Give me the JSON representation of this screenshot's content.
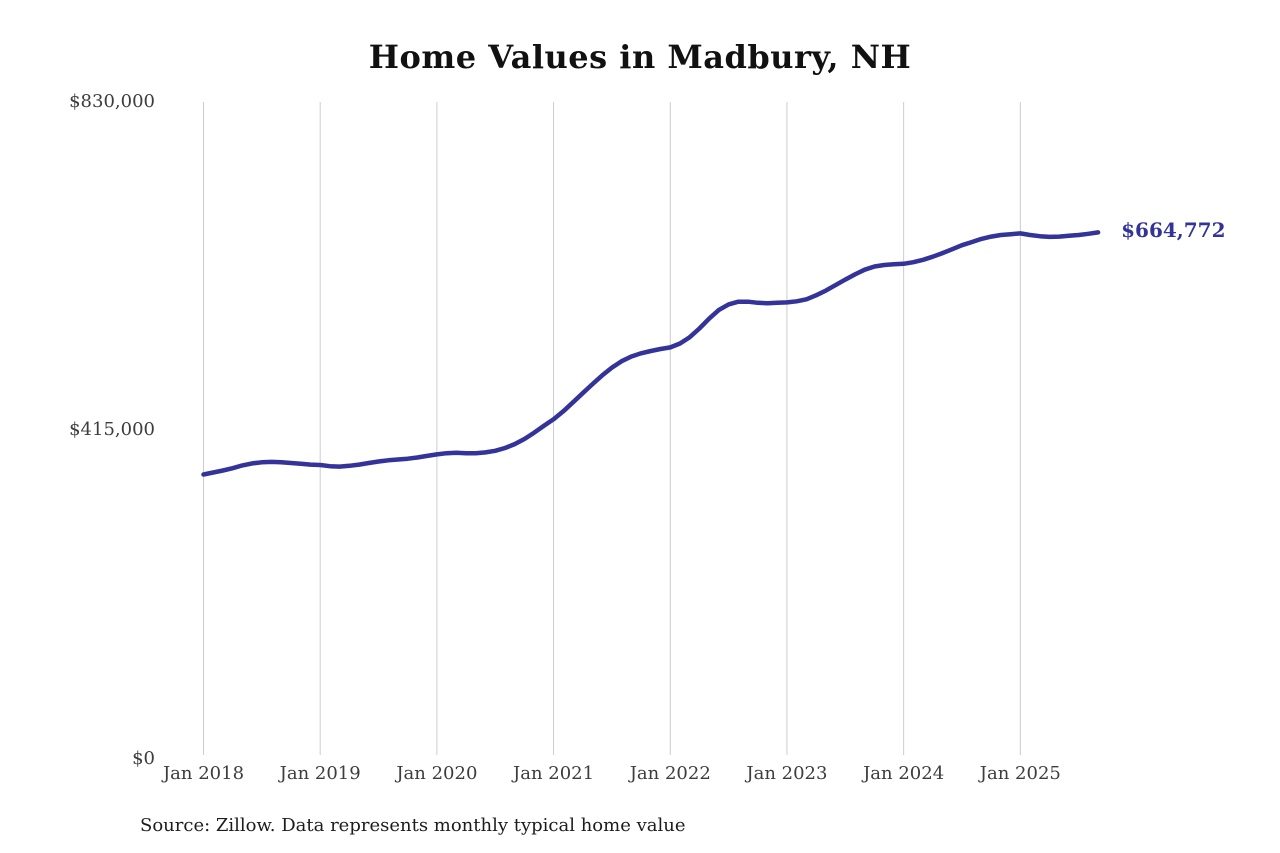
{
  "chart_data": {
    "type": "line",
    "title": "Home Values in Madbury, NH",
    "source_note": "Source: Zillow. Data represents monthly typical home value",
    "end_label": "$664,772",
    "latest_value": 664772,
    "line_color": "#333399",
    "grid_color": "#cccccc",
    "ylim": [
      0,
      830000
    ],
    "grid": "vertical-years-only",
    "legend": "none",
    "yticks": [
      {
        "value": 830000,
        "label": "$830,000"
      },
      {
        "value": 415000,
        "label": "$415,000"
      },
      {
        "value": 0,
        "label": "$0"
      }
    ],
    "xticks": [
      {
        "month_index": 0,
        "label": "Jan 2018"
      },
      {
        "month_index": 12,
        "label": "Jan 2019"
      },
      {
        "month_index": 24,
        "label": "Jan 2020"
      },
      {
        "month_index": 36,
        "label": "Jan 2021"
      },
      {
        "month_index": 48,
        "label": "Jan 2022"
      },
      {
        "month_index": 60,
        "label": "Jan 2023"
      },
      {
        "month_index": 72,
        "label": "Jan 2024"
      },
      {
        "month_index": 84,
        "label": "Jan 2025"
      }
    ],
    "series": [
      {
        "name": "Monthly typical home value",
        "start_month": "2018-01",
        "end_month": "2025-09",
        "values": [
          358000,
          360500,
          363000,
          366000,
          369500,
          372000,
          373500,
          374000,
          373500,
          372500,
          371500,
          370500,
          370000,
          368500,
          368000,
          369000,
          370500,
          372500,
          374500,
          376000,
          377000,
          378000,
          379500,
          381500,
          383500,
          385000,
          385500,
          385000,
          385000,
          386000,
          388000,
          391500,
          396500,
          403000,
          411000,
          419500,
          428000,
          438000,
          449500,
          461000,
          472500,
          483500,
          493500,
          501500,
          507500,
          511500,
          514500,
          517000,
          519000,
          524000,
          532000,
          543000,
          555500,
          566500,
          573500,
          577000,
          577000,
          575500,
          575000,
          575500,
          576000,
          577500,
          580000,
          585000,
          591000,
          598000,
          605000,
          611500,
          617500,
          621500,
          623500,
          624500,
          625000,
          627000,
          630000,
          634000,
          638500,
          643500,
          648500,
          652500,
          656500,
          659500,
          661500,
          662500,
          663500,
          661500,
          660000,
          659000,
          659500,
          660500,
          661500,
          663000,
          664772
        ]
      }
    ]
  }
}
